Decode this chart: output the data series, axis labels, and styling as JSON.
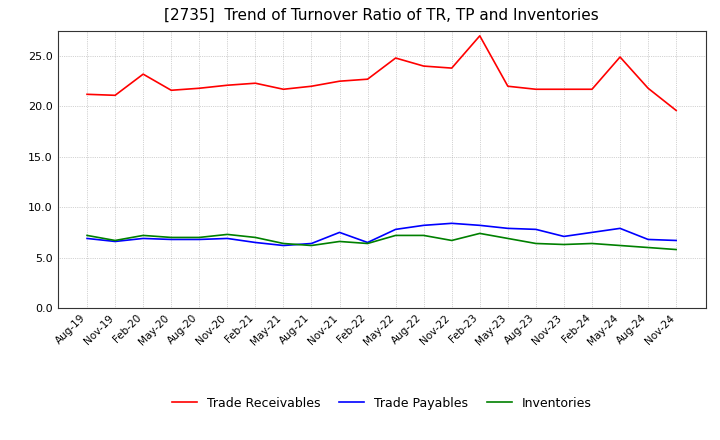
{
  "title": "[2735]  Trend of Turnover Ratio of TR, TP and Inventories",
  "title_fontsize": 11,
  "ylim": [
    0,
    27.5
  ],
  "yticks": [
    0,
    5.0,
    10.0,
    15.0,
    20.0,
    25.0
  ],
  "background_color": "#ffffff",
  "grid_color": "#aaaaaa",
  "labels": [
    "Aug-19",
    "Nov-19",
    "Feb-20",
    "May-20",
    "Aug-20",
    "Nov-20",
    "Feb-21",
    "May-21",
    "Aug-21",
    "Nov-21",
    "Feb-22",
    "May-22",
    "Aug-22",
    "Nov-22",
    "Feb-23",
    "May-23",
    "Aug-23",
    "Nov-23",
    "Feb-24",
    "May-24",
    "Aug-24",
    "Nov-24"
  ],
  "trade_receivables": [
    21.2,
    21.1,
    23.2,
    21.6,
    21.8,
    22.1,
    22.3,
    21.7,
    22.0,
    22.5,
    22.7,
    24.8,
    24.0,
    23.8,
    27.0,
    22.0,
    21.7,
    21.7,
    21.7,
    24.9,
    21.8,
    19.6
  ],
  "trade_payables": [
    6.9,
    6.6,
    6.9,
    6.8,
    6.8,
    6.9,
    6.5,
    6.2,
    6.4,
    7.5,
    6.5,
    7.8,
    8.2,
    8.4,
    8.2,
    7.9,
    7.8,
    7.1,
    7.5,
    7.9,
    6.8,
    6.7
  ],
  "inventories": [
    7.2,
    6.7,
    7.2,
    7.0,
    7.0,
    7.3,
    7.0,
    6.4,
    6.2,
    6.6,
    6.4,
    7.2,
    7.2,
    6.7,
    7.4,
    6.9,
    6.4,
    6.3,
    6.4,
    6.2,
    6.0,
    5.8
  ],
  "line_colors": {
    "trade_receivables": "#ff0000",
    "trade_payables": "#0000ff",
    "inventories": "#008000"
  },
  "legend_labels": {
    "trade_receivables": "Trade Receivables",
    "trade_payables": "Trade Payables",
    "inventories": "Inventories"
  }
}
